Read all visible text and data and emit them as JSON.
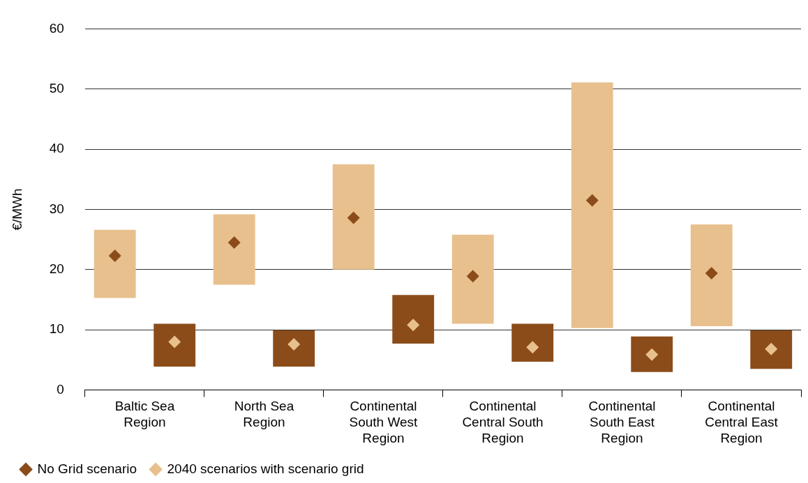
{
  "chart_data": {
    "type": "bar",
    "ylabel": "€/MWh",
    "categories": [
      "Baltic Sea Region",
      "North Sea Region",
      "Continental South West Region",
      "Continental Central South Region",
      "Continental South East Region",
      "Continental Central East Region"
    ],
    "series": [
      {
        "color": "#e8c08e",
        "base": [
          15.3,
          17.5,
          20.0,
          11.0,
          10.3,
          10.6
        ],
        "values": [
          11.3,
          11.7,
          17.5,
          14.8,
          40.8,
          16.9
        ]
      },
      {
        "color": "#8b4c1a",
        "base": [
          3.9,
          3.9,
          7.7,
          4.7,
          3.0,
          3.5
        ],
        "values": [
          7.1,
          6.0,
          8.1,
          6.3,
          5.9,
          6.4
        ]
      },
      {
        "type": "scatter",
        "name": "No Grid scenario",
        "color": "#8b4c1a",
        "x": [
          "Baltic Sea Region",
          "North Sea Region",
          "Continental South West Region",
          "Continental Central South Region",
          "Continental South East Region",
          "Continental Central East Region"
        ],
        "values": [
          22.3,
          24.5,
          28.6,
          18.9,
          31.5,
          19.4
        ]
      },
      {
        "type": "scatter",
        "name": "2040 scenarios with scenario grid",
        "color": "#e8c08e",
        "x": [
          "Baltic Sea Region",
          "North Sea Region",
          "Continental South West Region",
          "Continental Central South Region",
          "Continental South East Region",
          "Continental Central East Region"
        ],
        "values": [
          8.0,
          7.6,
          10.8,
          7.1,
          5.9,
          6.8
        ]
      }
    ],
    "ylim": [
      0,
      60
    ],
    "yticks": [
      0,
      10,
      20,
      30,
      40,
      50,
      60
    ],
    "grid": "y",
    "legend": "bottom left",
    "marker": "diamond"
  }
}
